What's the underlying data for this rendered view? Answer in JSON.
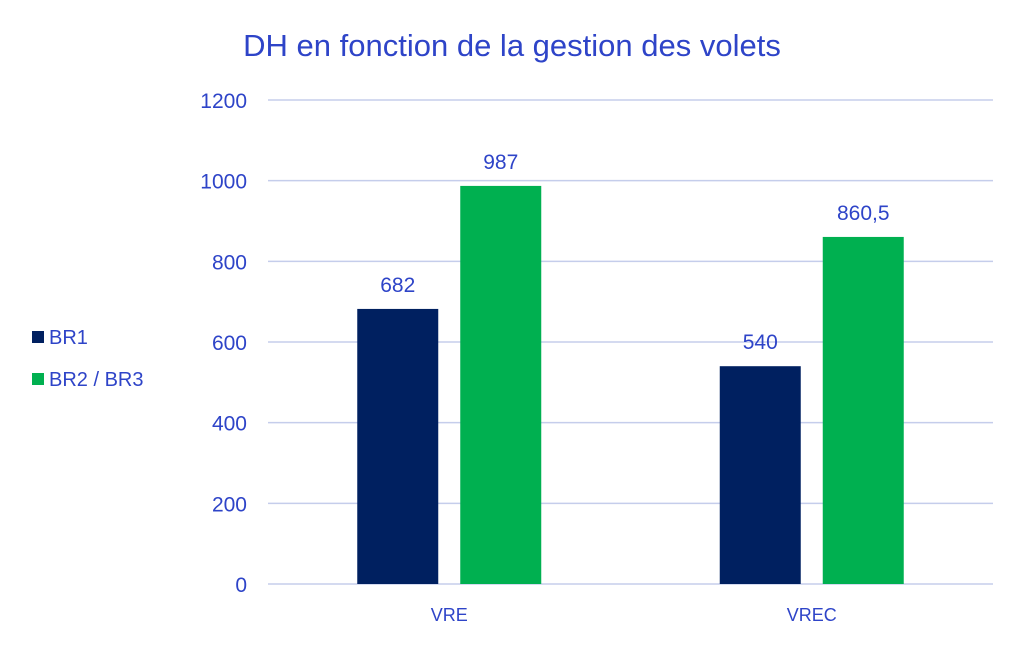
{
  "chart_data": {
    "type": "bar",
    "title": "DH en fonction de la gestion des volets",
    "categories": [
      "VRE",
      "VREC"
    ],
    "series": [
      {
        "name": "BR1",
        "values": [
          682,
          540
        ],
        "labels": [
          "682",
          "540"
        ],
        "color": "#002060"
      },
      {
        "name": "BR2 / BR3",
        "values": [
          987,
          860.5
        ],
        "labels": [
          "987",
          "860,5"
        ],
        "color": "#00B050"
      }
    ],
    "ylim": [
      0,
      1200
    ],
    "yticks": [
      0,
      200,
      400,
      600,
      800,
      1000,
      1200
    ],
    "xlabel": "",
    "ylabel": "",
    "grid": true,
    "legend_position": "left",
    "text_color": "#2E44C8",
    "grid_color": "#C5CDEB"
  }
}
